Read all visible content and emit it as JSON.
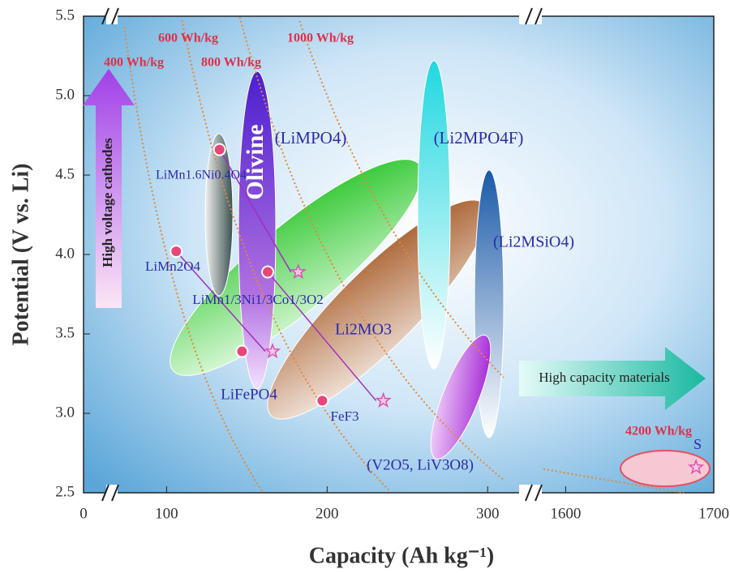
{
  "chart_data": {
    "type": "scatter",
    "y_label": "Potential (V vs. Li)",
    "x_label": "Capacity (Ah kg⁻¹)",
    "ylim": [
      2.5,
      5.5
    ],
    "yticks": [
      2.5,
      {
        "value": 3,
        "label": "3.0"
      },
      3.5,
      {
        "value": 4,
        "label": "4.0"
      },
      4.5,
      {
        "value": 5,
        "label": "5.0"
      },
      5.5
    ],
    "x_segments": [
      [
        0,
        60
      ],
      [
        70,
        310
      ],
      [
        1585,
        1700
      ]
    ],
    "xticks": [
      0,
      100,
      200,
      300,
      1600,
      1700
    ],
    "dots": {
      "color": "#e8457a",
      "x": [
        133,
        106,
        163,
        147,
        197
      ],
      "values": [
        4.66,
        4.02,
        3.89,
        3.39,
        3.08
      ]
    },
    "stars": {
      "color": "#e04fb0",
      "x": [
        182,
        166,
        235,
        1688
      ],
      "values": [
        3.89,
        3.39,
        3.08,
        2.66
      ]
    },
    "energy_lines": {
      "color": "#e08a3a",
      "values": [
        400,
        600,
        800,
        1000,
        4200
      ],
      "value_labels": [
        "400 Wh/kg",
        "600 Wh/kg",
        "800 Wh/kg",
        "1000 Wh/kg",
        "4200 Wh/kg"
      ]
    },
    "labels": [
      "Olivine",
      "(LiMPO4)",
      "(Li2MPO4F)",
      "LiMn1.6Ni0.4O4",
      "LiMn2O4",
      "LiMn1/3Ni1/3Co1/3O2",
      "Li2MO3",
      "(Li2MSiO4)",
      "LiFePO4",
      "FeF3",
      "(V2O5, LiV3O8)",
      "S"
    ],
    "arrow_labels": [
      "High voltage cathodes",
      "High capacity materials"
    ]
  }
}
